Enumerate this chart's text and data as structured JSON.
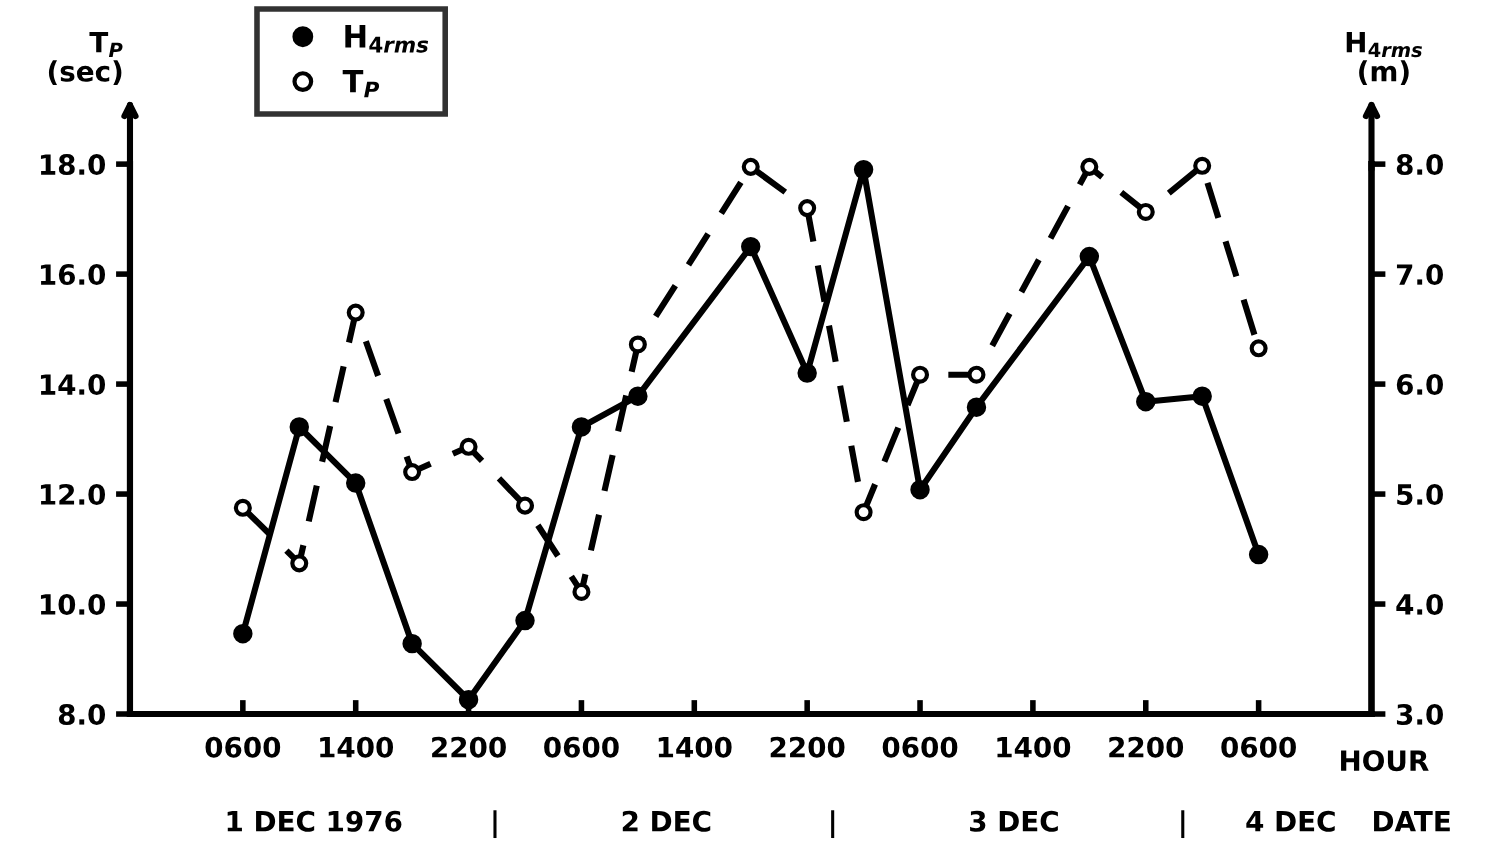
{
  "chart_data": {
    "type": "line",
    "ylabel": "T$_{P}$\n(sec)",
    "y2label": "H$_{4rms}$\n(m)",
    "xlabel": "HOUR",
    "categories": [
      "0600",
      null,
      "1400",
      null,
      "2200",
      null,
      "0600",
      null,
      "1400",
      null,
      "2200",
      null,
      "0600",
      null,
      "1400",
      null,
      "2200",
      null,
      "0600"
    ],
    "ylim": [
      8,
      18
    ],
    "yticks": [
      {
        "value": 8,
        "label": "8.0"
      },
      {
        "value": 10,
        "label": "10.0"
      },
      {
        "value": 12,
        "label": "12.0"
      },
      {
        "value": 14,
        "label": "14.0"
      },
      {
        "value": 16,
        "label": "16.0"
      },
      {
        "value": 18,
        "label": "18.0"
      }
    ],
    "y2lim": [
      3,
      8
    ],
    "y2ticks": [
      {
        "value": 3,
        "label": "3.0"
      },
      {
        "value": 4,
        "label": "4.0"
      },
      {
        "value": 5,
        "label": "5.0"
      },
      {
        "value": 6,
        "label": "6.0"
      },
      {
        "value": 7,
        "label": "7.0"
      },
      {
        "value": 8,
        "label": "8.0"
      }
    ],
    "series": [
      {
        "name": "H$_{4rms}$",
        "color": "#000000",
        "axis": "y2",
        "marker": "circle",
        "line_style": "solid",
        "values": [
          3.73,
          5.61,
          5.1,
          3.64,
          3.13,
          3.85,
          5.61,
          5.89,
          null,
          7.25,
          6.1,
          7.95,
          5.04,
          5.79,
          null,
          7.16,
          5.84,
          5.89,
          4.45
        ]
      },
      {
        "name": "T$_{P}$",
        "color": "#000000",
        "axis": "y",
        "marker": "circle",
        "line_style": "dashed",
        "values": [
          11.75,
          10.74,
          15.3,
          12.4,
          12.86,
          11.79,
          10.22,
          14.72,
          null,
          17.95,
          17.2,
          11.67,
          14.17,
          14.17,
          null,
          17.95,
          17.13,
          17.97,
          14.65
        ]
      }
    ],
    "annotations": [
      "1 DEC 1976",
      "|",
      "2 DEC",
      "|",
      "3 DEC",
      "|",
      "4 DEC",
      "DATE"
    ],
    "legend": "top left",
    "grid": false
  }
}
